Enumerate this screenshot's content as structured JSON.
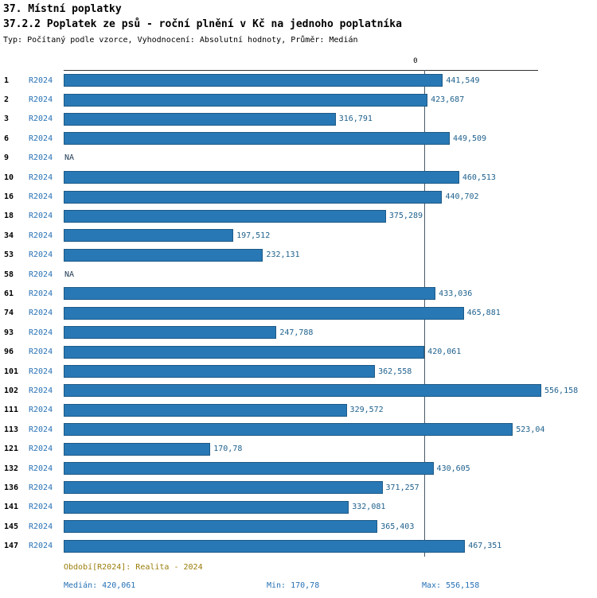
{
  "header": {
    "title": "37. Místní poplatky",
    "subtitle": "37.2.2 Poplatek ze psů - roční plnění v Kč na jednoho poplatníka",
    "meta": "Typ: Počítaný podle vzorce, Vyhodnocení: Absolutní hodnoty, Průměr: Medián"
  },
  "chart_data": {
    "type": "bar",
    "orientation": "horizontal",
    "unit": "Kč",
    "zero_label": "0",
    "na_label": "NA",
    "series_period": "R2024",
    "max_value": 556.158,
    "median_value": 420.061,
    "colors": {
      "bar": "#2878b5",
      "bar_border": "#1d5a87",
      "period_text": "#2671b5",
      "value_text": "#1f618d"
    },
    "rows": [
      {
        "id": "1",
        "period": "R2024",
        "value": 441.549,
        "label": "441,549"
      },
      {
        "id": "2",
        "period": "R2024",
        "value": 423.687,
        "label": "423,687"
      },
      {
        "id": "3",
        "period": "R2024",
        "value": 316.791,
        "label": "316,791"
      },
      {
        "id": "6",
        "period": "R2024",
        "value": 449.509,
        "label": "449,509"
      },
      {
        "id": "9",
        "period": "R2024",
        "value": null,
        "label": "NA"
      },
      {
        "id": "10",
        "period": "R2024",
        "value": 460.513,
        "label": "460,513"
      },
      {
        "id": "16",
        "period": "R2024",
        "value": 440.702,
        "label": "440,702"
      },
      {
        "id": "18",
        "period": "R2024",
        "value": 375.289,
        "label": "375,289"
      },
      {
        "id": "34",
        "period": "R2024",
        "value": 197.512,
        "label": "197,512"
      },
      {
        "id": "53",
        "period": "R2024",
        "value": 232.131,
        "label": "232,131"
      },
      {
        "id": "58",
        "period": "R2024",
        "value": null,
        "label": "NA"
      },
      {
        "id": "61",
        "period": "R2024",
        "value": 433.036,
        "label": "433,036"
      },
      {
        "id": "74",
        "period": "R2024",
        "value": 465.881,
        "label": "465,881"
      },
      {
        "id": "93",
        "period": "R2024",
        "value": 247.788,
        "label": "247,788"
      },
      {
        "id": "96",
        "period": "R2024",
        "value": 420.061,
        "label": "420,061"
      },
      {
        "id": "101",
        "period": "R2024",
        "value": 362.558,
        "label": "362,558"
      },
      {
        "id": "102",
        "period": "R2024",
        "value": 556.158,
        "label": "556,158"
      },
      {
        "id": "111",
        "period": "R2024",
        "value": 329.572,
        "label": "329,572"
      },
      {
        "id": "113",
        "period": "R2024",
        "value": 523.04,
        "label": "523,04"
      },
      {
        "id": "121",
        "period": "R2024",
        "value": 170.78,
        "label": "170,78"
      },
      {
        "id": "132",
        "period": "R2024",
        "value": 430.605,
        "label": "430,605"
      },
      {
        "id": "136",
        "period": "R2024",
        "value": 371.257,
        "label": "371,257"
      },
      {
        "id": "141",
        "period": "R2024",
        "value": 332.081,
        "label": "332,081"
      },
      {
        "id": "145",
        "period": "R2024",
        "value": 365.403,
        "label": "365,403"
      },
      {
        "id": "147",
        "period": "R2024",
        "value": 467.351,
        "label": "467,351"
      }
    ]
  },
  "footer": {
    "period": "Období[R2024]: Realita - 2024",
    "median": "Medián: 420,061",
    "min": "Min: 170,78",
    "max": "Max: 556,158"
  }
}
